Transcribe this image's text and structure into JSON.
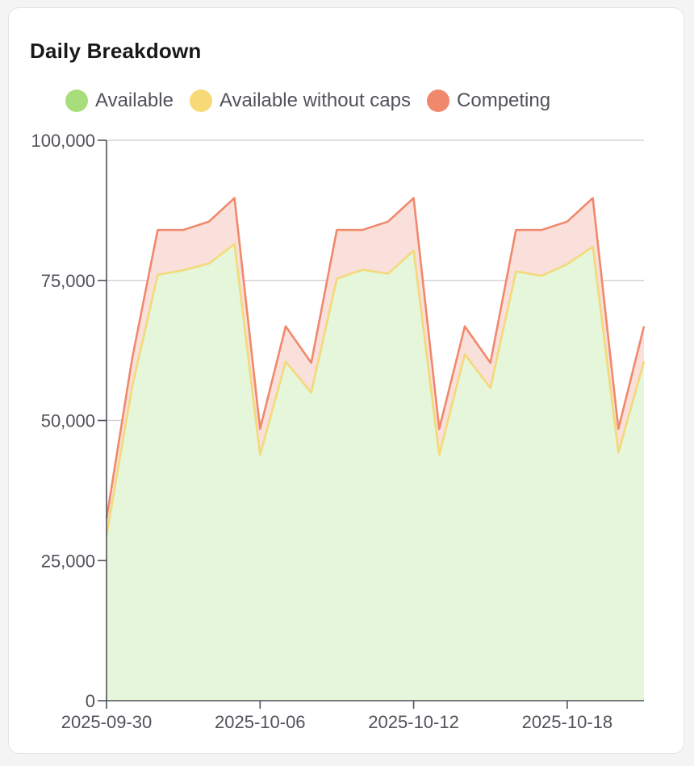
{
  "card": {
    "title": "Daily Breakdown"
  },
  "legend": [
    {
      "label": "Available",
      "color": "#a8dd7c"
    },
    {
      "label": "Available without caps",
      "color": "#f8d978"
    },
    {
      "label": "Competing",
      "color": "#f0896b"
    }
  ],
  "chart_data": {
    "type": "area",
    "title": "Daily Breakdown",
    "xlabel": "",
    "ylabel": "",
    "ylim": [
      0,
      100000
    ],
    "yticks": [
      "0",
      "25,000",
      "50,000",
      "75,000",
      "100,000"
    ],
    "ytick_values": [
      0,
      25000,
      50000,
      75000,
      100000
    ],
    "xticks": [
      "2025-09-30",
      "2025-10-06",
      "2025-10-12",
      "2025-10-18"
    ],
    "grid": true,
    "legend_position": "top",
    "stacked": false,
    "x": [
      "2025-09-30",
      "2025-10-01",
      "2025-10-02",
      "2025-10-03",
      "2025-10-04",
      "2025-10-05",
      "2025-10-06",
      "2025-10-07",
      "2025-10-08",
      "2025-10-09",
      "2025-10-10",
      "2025-10-11",
      "2025-10-12",
      "2025-10-13",
      "2025-10-14",
      "2025-10-15",
      "2025-10-16",
      "2025-10-17",
      "2025-10-18",
      "2025-10-19",
      "2025-10-20",
      "2025-10-21"
    ],
    "series": [
      {
        "name": "Available",
        "color": "#a8dd7c",
        "fill": "#e5f6da",
        "values": [
          29500,
          56000,
          76000,
          76800,
          78000,
          81500,
          43900,
          60500,
          55000,
          75300,
          76900,
          76200,
          80300,
          43900,
          61800,
          55800,
          76600,
          75800,
          77900,
          81000,
          44300,
          60500
        ]
      },
      {
        "name": "Available without caps",
        "color": "#f8d978",
        "fill": "#e5f6da",
        "values": [
          29500,
          56000,
          76000,
          76800,
          78000,
          81500,
          43900,
          60500,
          55000,
          75300,
          76900,
          76200,
          80300,
          43900,
          61800,
          55800,
          76600,
          75800,
          77900,
          81000,
          44300,
          60500
        ]
      },
      {
        "name": "Competing",
        "color": "#f0896b",
        "fill": "#fae0db",
        "values": [
          32500,
          61000,
          84000,
          84000,
          85500,
          89700,
          48500,
          66800,
          60300,
          84000,
          84000,
          85500,
          89700,
          48500,
          66800,
          60300,
          84000,
          84000,
          85500,
          89700,
          48500,
          66800
        ]
      }
    ]
  }
}
